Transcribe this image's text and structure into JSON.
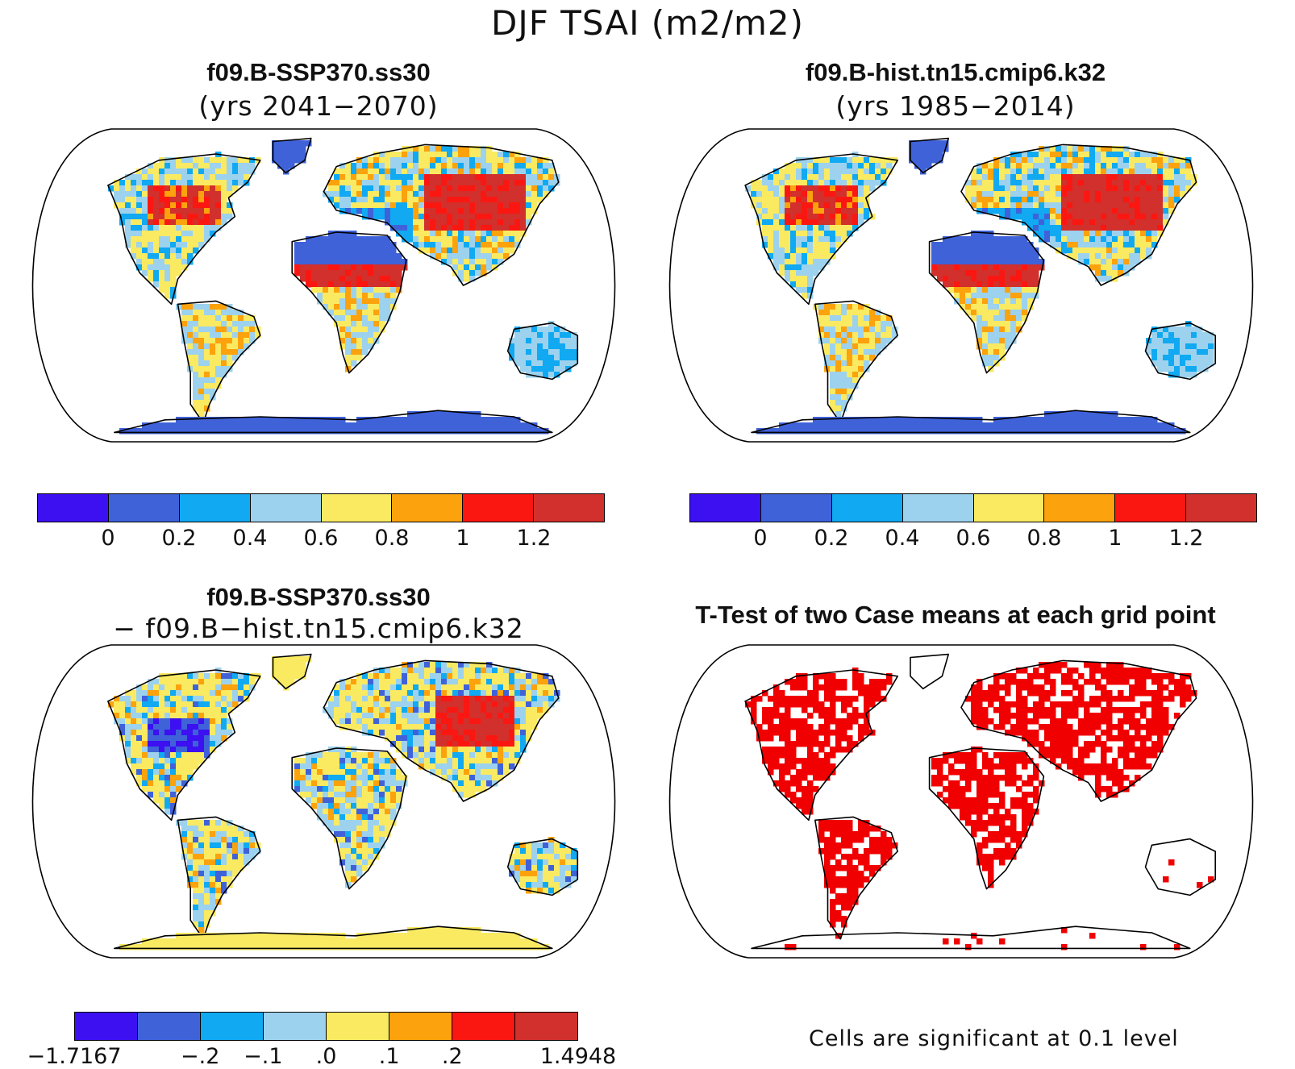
{
  "figure": {
    "title": "DJF TSAI (m2/m2)"
  },
  "panels": [
    {
      "id": "future",
      "title": "f09.B-SSP370.ss30",
      "subtitle": "(yrs 2041−2070)",
      "palette": "abs"
    },
    {
      "id": "historical",
      "title": "f09.B-hist.tn15.cmip6.k32",
      "subtitle": "(yrs 1985−2014)",
      "palette": "abs"
    },
    {
      "id": "difference",
      "title": "f09.B-SSP370.ss30",
      "subtitle": "− f09.B−hist.tn15.cmip6.k32",
      "palette": "diff"
    },
    {
      "id": "ttest",
      "title": "T-Test of two Case means at each grid point",
      "subtitle": "",
      "palette": "sig"
    }
  ],
  "colorbars": {
    "abs": {
      "colors": [
        "#3c10f0",
        "#3f62d9",
        "#10a9f2",
        "#9dd2ee",
        "#f9ea62",
        "#fba20c",
        "#fa1711",
        "#d1302c"
      ],
      "labels": [
        "0",
        "0.2",
        "0.4",
        "0.6",
        "0.8",
        "1",
        "1.2"
      ]
    },
    "diff": {
      "colors": [
        "#3c10f0",
        "#3f62d9",
        "#10a9f2",
        "#9dd2ee",
        "#f9ea62",
        "#fba20c",
        "#fa1711",
        "#d1302c"
      ],
      "labels": [
        "−1.7167",
        "−.2",
        "−.1",
        ".0",
        ".1",
        ".2",
        "1.4948"
      ]
    }
  },
  "significance": {
    "color": "#f00000",
    "note": "Cells are significant at 0.1 level"
  }
}
